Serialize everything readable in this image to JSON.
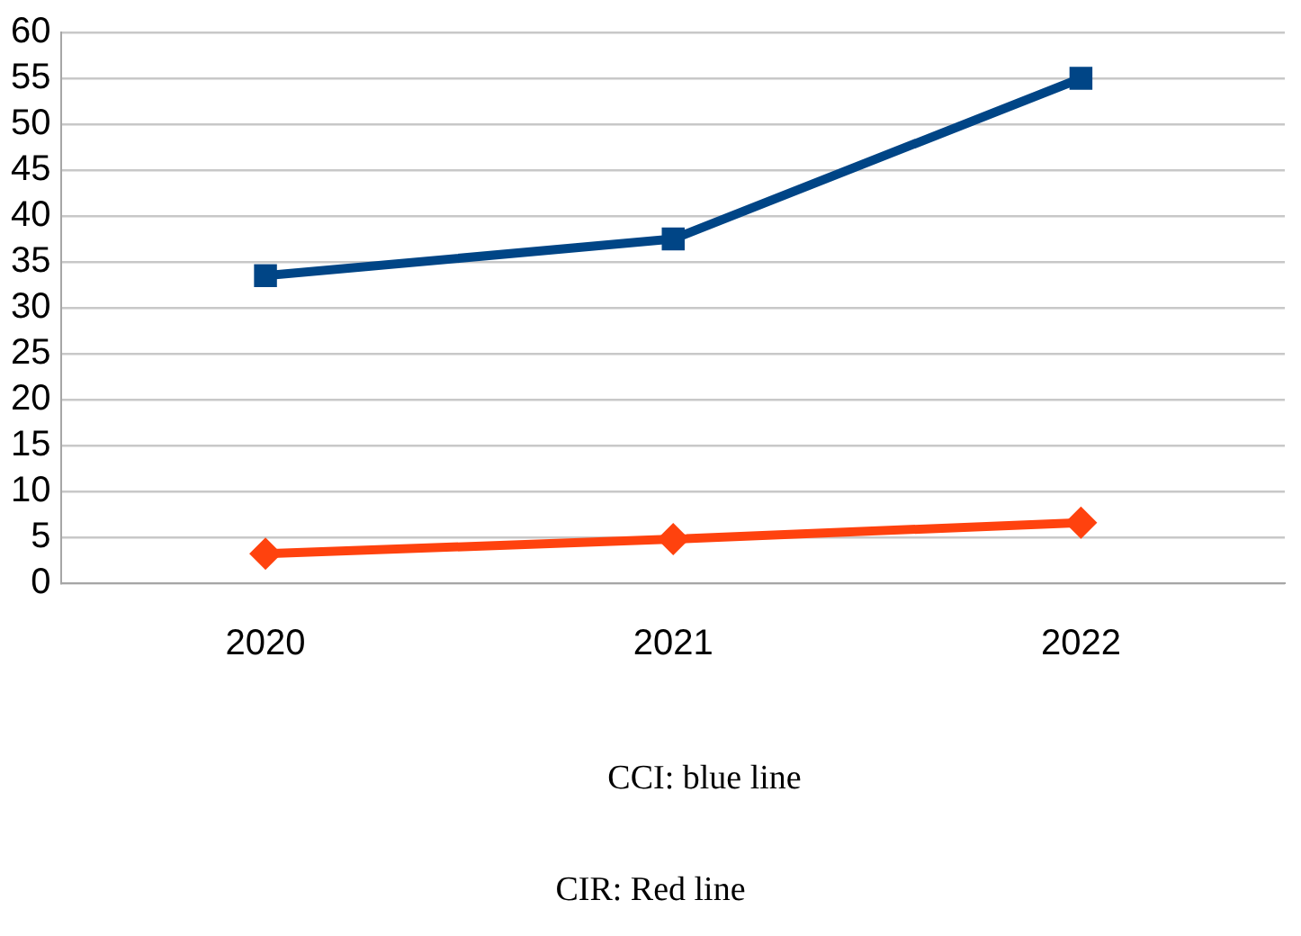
{
  "chart_data": {
    "type": "line",
    "categories": [
      "2020",
      "2021",
      "2022"
    ],
    "series": [
      {
        "color": "#004586",
        "marker": "square",
        "values": [
          33.5,
          37.5,
          55
        ]
      },
      {
        "color": "#ff420e",
        "marker": "diamond",
        "values": [
          3.2,
          4.8,
          6.6
        ]
      }
    ],
    "ylim": [
      0,
      60
    ],
    "yticks": [
      0,
      5,
      10,
      15,
      20,
      25,
      30,
      35,
      40,
      45,
      50,
      55,
      60
    ],
    "grid": "y",
    "legend": false,
    "annotations": [
      "CCI: blue line",
      "CIR: Red line"
    ]
  }
}
